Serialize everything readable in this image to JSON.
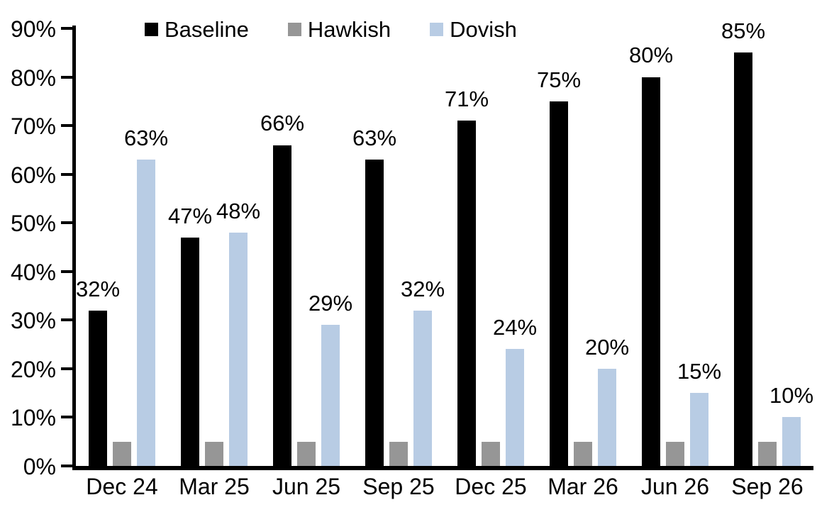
{
  "chart_data": {
    "type": "bar",
    "title": "",
    "xlabel": "",
    "ylabel": "",
    "grid": false,
    "legend_position": "top-center",
    "categories": [
      "Dec 24",
      "Mar 25",
      "Jun 25",
      "Sep 25",
      "Dec 25",
      "Mar 26",
      "Jun 26",
      "Sep 26"
    ],
    "series": [
      {
        "name": "Baseline",
        "color": "#000000",
        "values": [
          32,
          47,
          66,
          63,
          71,
          75,
          80,
          85
        ],
        "labels": [
          "32%",
          "47%",
          "66%",
          "63%",
          "71%",
          "75%",
          "80%",
          "85%"
        ]
      },
      {
        "name": "Hawkish",
        "color": "#969696",
        "values": [
          5,
          5,
          5,
          5,
          5,
          5,
          5,
          5
        ],
        "labels": null
      },
      {
        "name": "Dovish",
        "color": "#B8CCE4",
        "values": [
          63,
          48,
          29,
          32,
          24,
          20,
          15,
          10
        ],
        "labels": [
          "63%",
          "48%",
          "29%",
          "32%",
          "24%",
          "20%",
          "15%",
          "10%"
        ]
      }
    ],
    "y_axis": {
      "min": 0,
      "max": 90,
      "tick_step": 10,
      "tick_labels_top_down": [
        "90%",
        "80%",
        "70%",
        "60%",
        "50%",
        "40%",
        "30%",
        "20%",
        "10%",
        "0%"
      ],
      "value_suffix": "%"
    },
    "colors": {
      "axis": "#000000",
      "background": "#ffffff",
      "text": "#000000"
    }
  }
}
